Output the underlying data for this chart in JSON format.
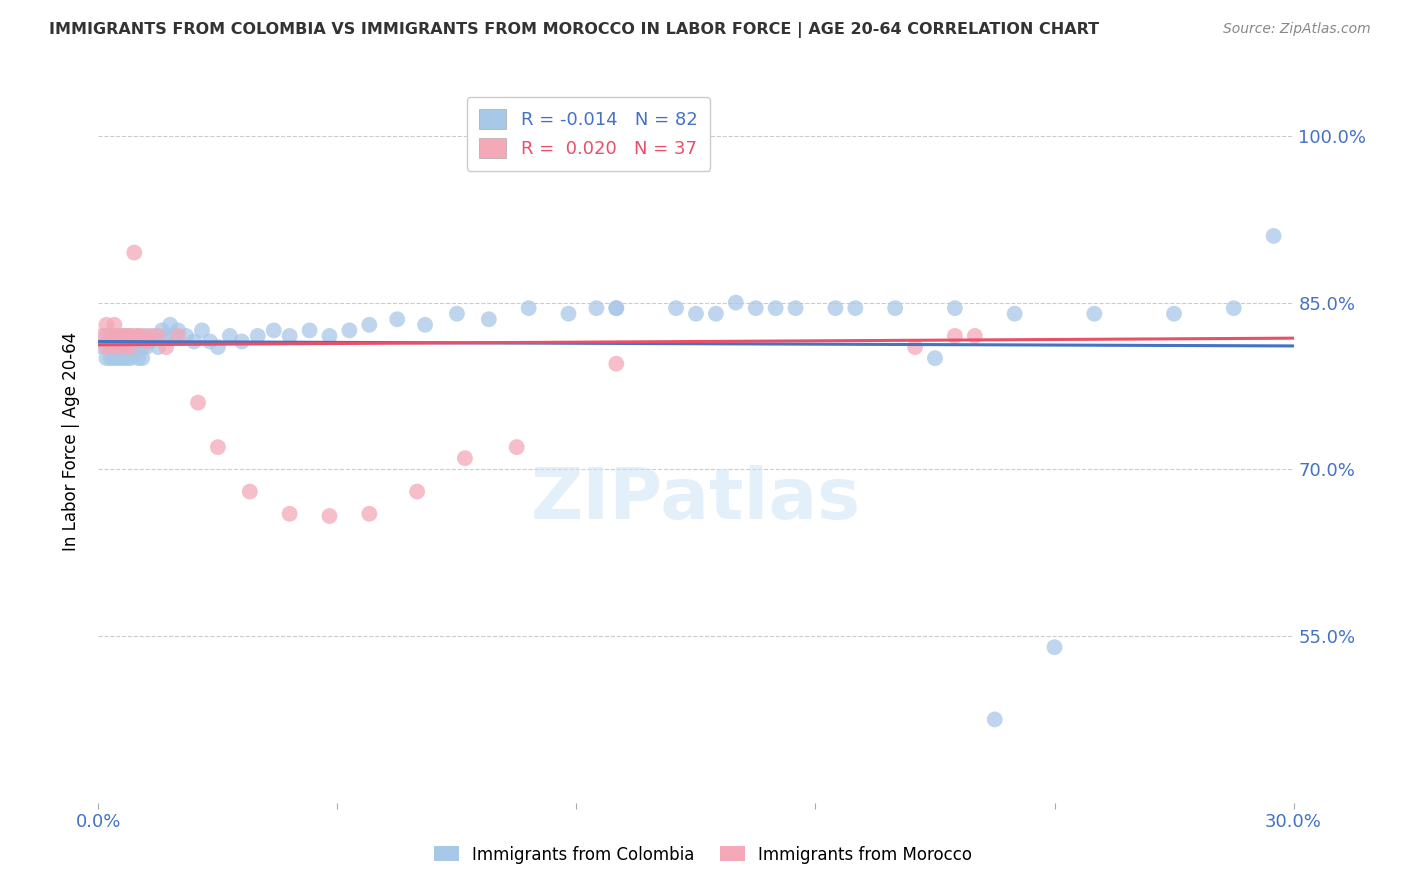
{
  "title": "IMMIGRANTS FROM COLOMBIA VS IMMIGRANTS FROM MOROCCO IN LABOR FORCE | AGE 20-64 CORRELATION CHART",
  "source": "Source: ZipAtlas.com",
  "ylabel": "In Labor Force | Age 20-64",
  "xlim": [
    0.0,
    0.3
  ],
  "ylim": [
    0.4,
    1.05
  ],
  "ytick_vals": [
    0.55,
    0.7,
    0.85,
    1.0
  ],
  "ytick_labels": [
    "55.0%",
    "70.0%",
    "85.0%",
    "100.0%"
  ],
  "xtick_positions": [
    0.0,
    0.06,
    0.12,
    0.18,
    0.24,
    0.3
  ],
  "colombia_R": -0.014,
  "colombia_N": 82,
  "morocco_R": 0.02,
  "morocco_N": 37,
  "colombia_color": "#a8c8e8",
  "morocco_color": "#f4a8b8",
  "colombia_line_color": "#4472c4",
  "morocco_line_color": "#e8506a",
  "grid_color": "#cccccc",
  "axis_color": "#4472c4",
  "title_color": "#333333",
  "source_color": "#888888",
  "watermark": "ZIPatlas",
  "colombia_x": [
    0.001,
    0.002,
    0.002,
    0.003,
    0.003,
    0.003,
    0.004,
    0.004,
    0.004,
    0.005,
    0.005,
    0.005,
    0.006,
    0.006,
    0.006,
    0.006,
    0.007,
    0.007,
    0.007,
    0.008,
    0.008,
    0.008,
    0.009,
    0.009,
    0.01,
    0.01,
    0.01,
    0.011,
    0.011,
    0.012,
    0.012,
    0.013,
    0.014,
    0.015,
    0.016,
    0.017,
    0.018,
    0.019,
    0.02,
    0.022,
    0.024,
    0.026,
    0.028,
    0.03,
    0.033,
    0.036,
    0.04,
    0.044,
    0.048,
    0.053,
    0.058,
    0.063,
    0.068,
    0.075,
    0.082,
    0.09,
    0.098,
    0.108,
    0.118,
    0.13,
    0.145,
    0.165,
    0.185,
    0.2,
    0.215,
    0.23,
    0.25,
    0.27,
    0.285,
    0.295,
    0.16,
    0.175,
    0.19,
    0.135,
    0.15,
    0.13,
    0.155,
    0.17,
    0.125,
    0.21,
    0.225,
    0.24
  ],
  "colombia_y": [
    0.81,
    0.82,
    0.8,
    0.81,
    0.82,
    0.8,
    0.815,
    0.8,
    0.82,
    0.805,
    0.815,
    0.8,
    0.82,
    0.81,
    0.8,
    0.815,
    0.81,
    0.82,
    0.8,
    0.815,
    0.8,
    0.82,
    0.81,
    0.805,
    0.815,
    0.8,
    0.82,
    0.81,
    0.8,
    0.82,
    0.81,
    0.815,
    0.82,
    0.81,
    0.825,
    0.82,
    0.83,
    0.82,
    0.825,
    0.82,
    0.815,
    0.825,
    0.815,
    0.81,
    0.82,
    0.815,
    0.82,
    0.825,
    0.82,
    0.825,
    0.82,
    0.825,
    0.83,
    0.835,
    0.83,
    0.84,
    0.835,
    0.845,
    0.84,
    0.845,
    0.845,
    0.845,
    0.845,
    0.845,
    0.845,
    0.84,
    0.84,
    0.84,
    0.845,
    0.91,
    0.85,
    0.845,
    0.845,
    1.0,
    0.84,
    0.845,
    0.84,
    0.845,
    0.845,
    0.8,
    0.475,
    0.54
  ],
  "morocco_x": [
    0.001,
    0.002,
    0.002,
    0.003,
    0.003,
    0.004,
    0.004,
    0.005,
    0.005,
    0.006,
    0.006,
    0.007,
    0.007,
    0.008,
    0.008,
    0.009,
    0.009,
    0.01,
    0.011,
    0.012,
    0.013,
    0.015,
    0.017,
    0.02,
    0.025,
    0.03,
    0.038,
    0.048,
    0.058,
    0.068,
    0.08,
    0.092,
    0.105,
    0.13,
    0.205,
    0.215,
    0.22
  ],
  "morocco_y": [
    0.82,
    0.83,
    0.81,
    0.82,
    0.815,
    0.83,
    0.81,
    0.82,
    0.815,
    0.82,
    0.81,
    0.82,
    0.815,
    0.82,
    0.81,
    0.82,
    0.895,
    0.82,
    0.82,
    0.815,
    0.82,
    0.82,
    0.81,
    0.82,
    0.76,
    0.72,
    0.68,
    0.66,
    0.658,
    0.66,
    0.68,
    0.71,
    0.72,
    0.795,
    0.81,
    0.82,
    0.82
  ],
  "col_line_x": [
    0.0,
    0.3
  ],
  "col_line_y": [
    0.815,
    0.811
  ],
  "mor_line_x": [
    0.0,
    0.3
  ],
  "mor_line_y": [
    0.812,
    0.818
  ]
}
